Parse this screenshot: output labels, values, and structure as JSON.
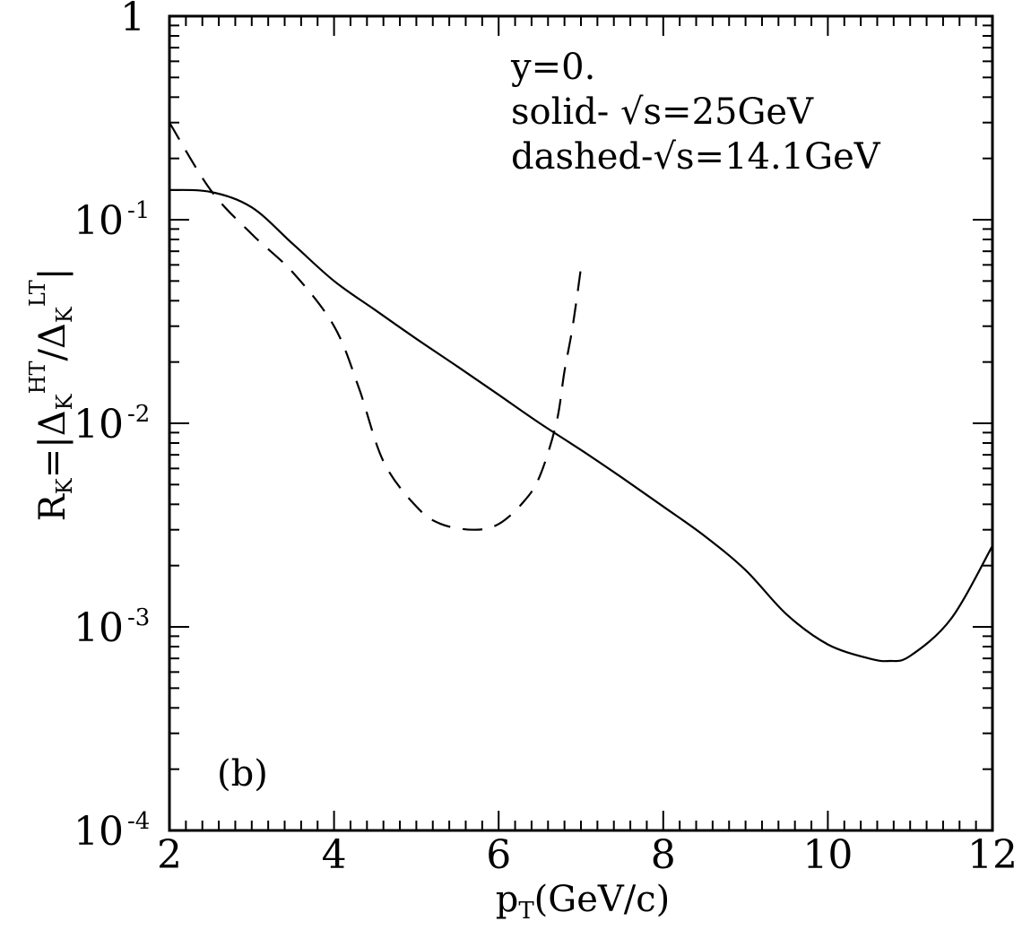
{
  "chart_data": {
    "type": "line",
    "title": "",
    "xlabel": "p_T(GeV/c)",
    "ylabel": "R_K = |Δ_K^HT / Δ_K^LT|",
    "x_axis_title": {
      "base": "p",
      "sub": "T",
      "rest": "(GeV/c)"
    },
    "y_axis_title": {
      "r": "R",
      "r_sub": "K",
      "eq": "=|Δ",
      "num_sub": "K",
      "num_sup": "HT",
      "slash": "/Δ",
      "den_sub": "K",
      "den_sup": "LT",
      "close": "|"
    },
    "xlim": [
      2,
      12
    ],
    "ylim": [
      0.0001,
      1
    ],
    "yscale": "log",
    "grid": false,
    "x_ticks": [
      {
        "value": 2,
        "label": "2"
      },
      {
        "value": 4,
        "label": "4"
      },
      {
        "value": 6,
        "label": "6"
      },
      {
        "value": 8,
        "label": "8"
      },
      {
        "value": 10,
        "label": "10"
      },
      {
        "value": 12,
        "label": "12"
      }
    ],
    "y_ticks": [
      {
        "value": 1,
        "base": "1",
        "exp": ""
      },
      {
        "value": 0.1,
        "base": "10",
        "exp": "-1"
      },
      {
        "value": 0.01,
        "base": "10",
        "exp": "-2"
      },
      {
        "value": 0.001,
        "base": "10",
        "exp": "-3"
      },
      {
        "value": 0.0001,
        "base": "10",
        "exp": "-4"
      }
    ],
    "annotations": {
      "legend_lines": [
        "y=0.",
        "solid- √s=25GeV",
        "dashed-√s=14.1GeV"
      ],
      "panel_label": "(b)"
    },
    "series": [
      {
        "style": "solid",
        "x": [
          2.0,
          2.5,
          3.0,
          3.5,
          4.0,
          4.5,
          5.0,
          5.5,
          6.0,
          6.5,
          7.0,
          7.5,
          8.0,
          8.5,
          9.0,
          9.5,
          10.0,
          10.5,
          10.75,
          11.0,
          11.5,
          12.0
        ],
        "y": [
          0.14,
          0.137,
          0.115,
          0.076,
          0.05,
          0.036,
          0.026,
          0.019,
          0.0138,
          0.01,
          0.0074,
          0.0054,
          0.0039,
          0.0028,
          0.0019,
          0.00115,
          0.00082,
          0.0007,
          0.00068,
          0.00072,
          0.0011,
          0.0025
        ]
      },
      {
        "style": "dashed",
        "x": [
          2.0,
          2.5,
          3.0,
          3.5,
          4.0,
          4.3,
          4.6,
          5.0,
          5.3,
          5.7,
          6.0,
          6.3,
          6.5,
          6.7,
          6.8,
          6.9,
          7.0
        ],
        "y": [
          0.3,
          0.14,
          0.085,
          0.055,
          0.03,
          0.015,
          0.0065,
          0.0039,
          0.0032,
          0.003,
          0.0032,
          0.0041,
          0.0055,
          0.01,
          0.018,
          0.03,
          0.058
        ]
      }
    ]
  }
}
